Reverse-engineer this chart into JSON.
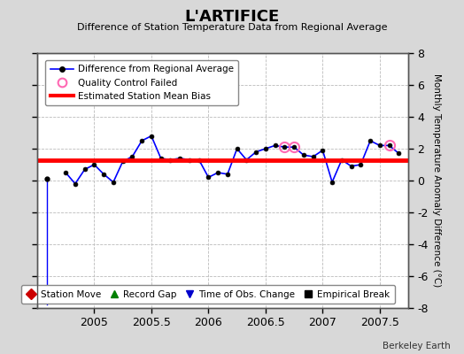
{
  "title": "L'ARTIFICE",
  "subtitle": "Difference of Station Temperature Data from Regional Average",
  "ylabel": "Monthly Temperature Anomaly Difference (°C)",
  "xlim": [
    2004.5,
    2007.75
  ],
  "ylim": [
    -8,
    8
  ],
  "yticks": [
    -8,
    -6,
    -4,
    -2,
    0,
    2,
    4,
    6,
    8
  ],
  "xticks": [
    2005,
    2005.5,
    2006,
    2006.5,
    2007,
    2007.5
  ],
  "bias_value": 1.3,
  "background_color": "#d8d8d8",
  "plot_bg_color": "#ffffff",
  "line_color": "#0000ff",
  "bias_color": "#ff0000",
  "marker_color": "#000000",
  "qc_color": "#ff69b4",
  "watermark": "Berkeley Earth",
  "x_data": [
    2004.583,
    2004.667,
    2004.75,
    2004.833,
    2004.917,
    2005.0,
    2005.083,
    2005.167,
    2005.25,
    2005.333,
    2005.417,
    2005.5,
    2005.583,
    2005.667,
    2005.75,
    2005.833,
    2005.917,
    2006.0,
    2006.083,
    2006.167,
    2006.25,
    2006.333,
    2006.417,
    2006.5,
    2006.583,
    2006.667,
    2006.75,
    2006.833,
    2006.917,
    2007.0,
    2007.083,
    2007.167,
    2007.25,
    2007.333,
    2007.417,
    2007.5,
    2007.583,
    2007.667
  ],
  "y_data": [
    0.1,
    -7.8,
    0.5,
    -0.2,
    0.7,
    1.0,
    0.4,
    -0.1,
    1.2,
    1.5,
    2.5,
    2.8,
    1.4,
    1.3,
    1.4,
    1.3,
    1.3,
    0.2,
    0.5,
    0.4,
    2.0,
    1.3,
    1.8,
    2.0,
    2.2,
    2.1,
    2.1,
    1.6,
    1.5,
    1.9,
    -0.1,
    1.3,
    0.9,
    1.0,
    2.5,
    2.2,
    2.2,
    1.7
  ],
  "qc_failed_indices": [
    25,
    26,
    36
  ],
  "legend_entries": [
    "Difference from Regional Average",
    "Quality Control Failed",
    "Estimated Station Mean Bias"
  ],
  "bottom_legend": [
    {
      "label": "Station Move",
      "color": "#cc0000",
      "marker": "D"
    },
    {
      "label": "Record Gap",
      "color": "#008000",
      "marker": "^"
    },
    {
      "label": "Time of Obs. Change",
      "color": "#0000cc",
      "marker": "v"
    },
    {
      "label": "Empirical Break",
      "color": "#000000",
      "marker": "s"
    }
  ]
}
